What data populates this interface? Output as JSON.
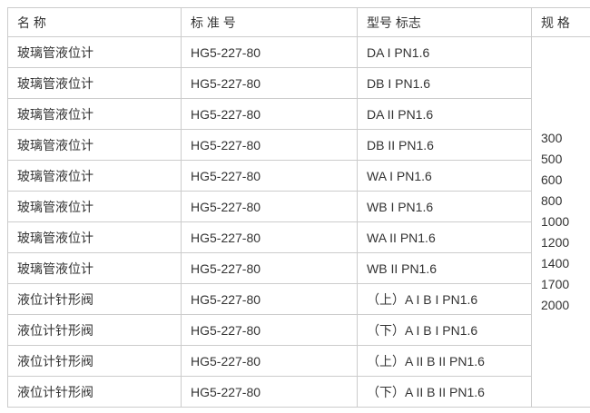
{
  "table": {
    "headers": {
      "name": "名 称",
      "standard": "标 准 号",
      "model": "型号 标志",
      "spec": "规 格"
    },
    "rows": [
      {
        "name": "玻璃管液位计",
        "standard": "HG5-227-80",
        "model": "DA I PN1.6"
      },
      {
        "name": "玻璃管液位计",
        "standard": "HG5-227-80",
        "model": "DB I PN1.6"
      },
      {
        "name": "玻璃管液位计",
        "standard": "HG5-227-80",
        "model": "DA II PN1.6"
      },
      {
        "name": "玻璃管液位计",
        "standard": "HG5-227-80",
        "model": "DB II PN1.6"
      },
      {
        "name": "玻璃管液位计",
        "standard": "HG5-227-80",
        "model": "WA I PN1.6"
      },
      {
        "name": "玻璃管液位计",
        "standard": "HG5-227-80",
        "model": "WB I PN1.6"
      },
      {
        "name": "玻璃管液位计",
        "standard": "HG5-227-80",
        "model": "WA II PN1.6"
      },
      {
        "name": "玻璃管液位计",
        "standard": "HG5-227-80",
        "model": "WB II PN1.6"
      },
      {
        "name": "液位计针形阀",
        "standard": "HG5-227-80",
        "model": "（上）A I B I PN1.6"
      },
      {
        "name": "液位计针形阀",
        "standard": "HG5-227-80",
        "model": "（下）A I B I PN1.6"
      },
      {
        "name": "液位计针形阀",
        "standard": "HG5-227-80",
        "model": "（上）A II B II PN1.6"
      },
      {
        "name": "液位计针形阀",
        "standard": "HG5-227-80",
        "model": "（下）A II B II PN1.6"
      }
    ],
    "specs": [
      "300",
      "500",
      "600",
      "800",
      "1000",
      "1200",
      "1400",
      "1700",
      "2000"
    ]
  },
  "colors": {
    "border": "#cccccc",
    "text": "#333333",
    "background": "#ffffff"
  }
}
